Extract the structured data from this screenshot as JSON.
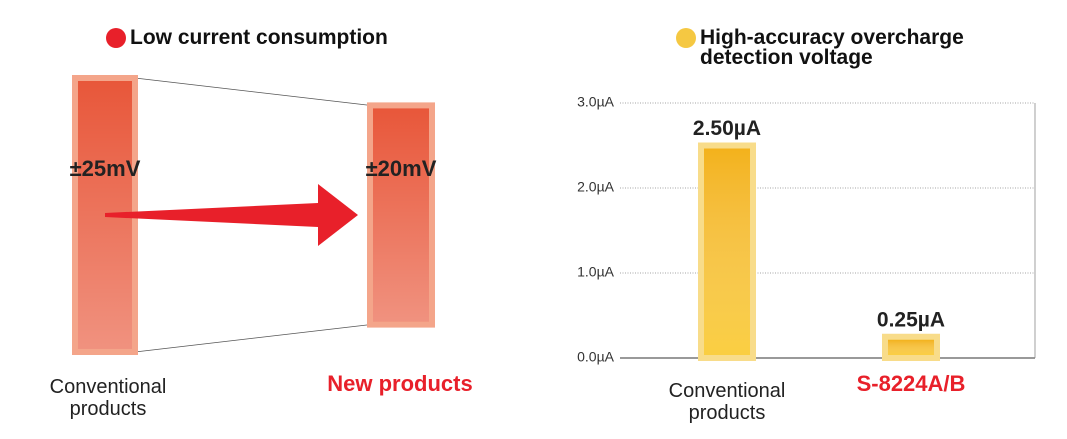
{
  "chart_data": [
    {
      "type": "comparison",
      "title": "Low current consumption",
      "title_marker_color": "#e8202a",
      "categories": [
        "Conventional products",
        "New products"
      ],
      "category_colors": [
        "#222222",
        "#e8202a"
      ],
      "values": [
        25,
        20
      ],
      "value_labels": [
        "±25mV",
        "±20mV"
      ],
      "color": "#e8573a",
      "arrow_color": "#e8202a"
    },
    {
      "type": "bar",
      "title": "High-accuracy overcharge detection voltage",
      "title_marker_color": "#f5c842",
      "categories": [
        "Conventional products",
        "S-8224A/B"
      ],
      "category_colors": [
        "#222222",
        "#e8202a"
      ],
      "values": [
        2.5,
        0.25
      ],
      "value_labels": [
        "2.50µA",
        "0.25µA"
      ],
      "color": "#f3b21c",
      "ylim": [
        0,
        3
      ],
      "yticks": [
        {
          "value": 0,
          "label": "0.0µA"
        },
        {
          "value": 1,
          "label": "1.0µA"
        },
        {
          "value": 2,
          "label": "2.0µA"
        },
        {
          "value": 3,
          "label": "3.0µA"
        }
      ],
      "grid": true
    }
  ]
}
